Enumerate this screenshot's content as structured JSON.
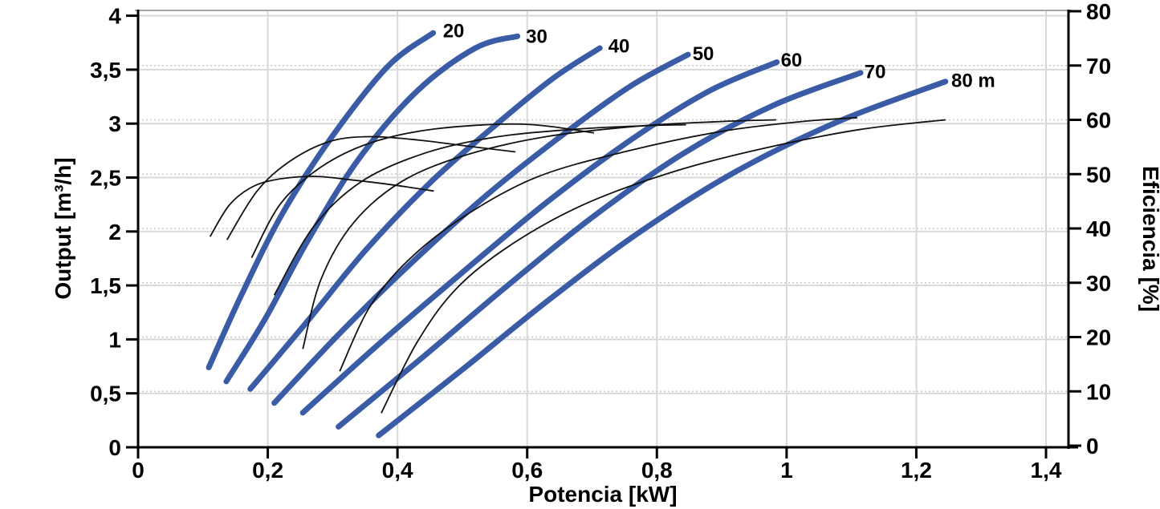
{
  "page": {
    "background": "#ffffff"
  },
  "style": {
    "head_curve_color": "#3A5BA6",
    "efficiency_curve_color": "#121212",
    "grid_color": "#d9d9d9",
    "dotted_grid_color": "#c9c9c9",
    "axis_color": "#000000",
    "frame_top_color": "#a6a6a6",
    "text_color": "#000000",
    "tick_font_size": 28,
    "axis_title_font_size": 28,
    "curve_label_font_size": 24
  },
  "chart_data": {
    "type": "line",
    "title": "",
    "x_axis": {
      "label": "Potencia [kW]",
      "range": [
        0,
        1.4345
      ],
      "tick_values": [
        0,
        0.2,
        0.4,
        0.6,
        0.8,
        1.0,
        1.2,
        1.4
      ],
      "tick_labels": [
        "0",
        "0,2",
        "0,4",
        "0,6",
        "0,8",
        "1",
        "1,2",
        "1,4"
      ],
      "grid": "solid"
    },
    "y_axis_left": {
      "label": "Output [m³/h]",
      "range": [
        0,
        4.05
      ],
      "tick_values": [
        0,
        0.5,
        1,
        1.5,
        2,
        2.5,
        3,
        3.5,
        4
      ],
      "tick_labels": [
        "0",
        "0,5",
        "1",
        "1,5",
        "2",
        "2,5",
        "3",
        "3,5",
        "4"
      ],
      "grid": "solid"
    },
    "y_axis_right": {
      "label": "Eficiencia [%]",
      "range": [
        0,
        80
      ],
      "tick_values": [
        0,
        10,
        20,
        30,
        40,
        50,
        60,
        70,
        80
      ],
      "tick_labels": [
        "0",
        "10",
        "20",
        "30",
        "40",
        "50",
        "60",
        "70",
        "80"
      ],
      "grid": "dotted"
    },
    "legend_position": "none",
    "head_curves": [
      {
        "head_m": 20,
        "label": "20",
        "label_at": [
          0.47,
          3.8
        ],
        "points": [
          [
            0.109,
            0.74
          ],
          [
            0.16,
            1.42
          ],
          [
            0.222,
            2.16
          ],
          [
            0.298,
            2.87
          ],
          [
            0.385,
            3.53
          ],
          [
            0.455,
            3.84
          ]
        ]
      },
      {
        "head_m": 30,
        "label": "30",
        "label_at": [
          0.598,
          3.75
        ],
        "points": [
          [
            0.136,
            0.61
          ],
          [
            0.196,
            1.19
          ],
          [
            0.262,
            1.92
          ],
          [
            0.34,
            2.67
          ],
          [
            0.43,
            3.3
          ],
          [
            0.52,
            3.7
          ],
          [
            0.585,
            3.81
          ]
        ]
      },
      {
        "head_m": 40,
        "label": "40",
        "label_at": [
          0.725,
          3.66
        ],
        "points": [
          [
            0.173,
            0.54
          ],
          [
            0.26,
            1.16
          ],
          [
            0.35,
            1.82
          ],
          [
            0.45,
            2.45
          ],
          [
            0.55,
            2.98
          ],
          [
            0.64,
            3.42
          ],
          [
            0.712,
            3.7
          ]
        ]
      },
      {
        "head_m": 50,
        "label": "50",
        "label_at": [
          0.855,
          3.59
        ],
        "points": [
          [
            0.21,
            0.41
          ],
          [
            0.31,
            1.05
          ],
          [
            0.42,
            1.7
          ],
          [
            0.54,
            2.35
          ],
          [
            0.66,
            2.92
          ],
          [
            0.76,
            3.35
          ],
          [
            0.848,
            3.64
          ]
        ]
      },
      {
        "head_m": 60,
        "label": "60",
        "label_at": [
          0.991,
          3.53
        ],
        "points": [
          [
            0.254,
            0.32
          ],
          [
            0.37,
            0.95
          ],
          [
            0.5,
            1.62
          ],
          [
            0.63,
            2.27
          ],
          [
            0.76,
            2.85
          ],
          [
            0.88,
            3.3
          ],
          [
            0.985,
            3.57
          ]
        ]
      },
      {
        "head_m": 70,
        "label": "70",
        "label_at": [
          1.12,
          3.42
        ],
        "points": [
          [
            0.309,
            0.19
          ],
          [
            0.44,
            0.84
          ],
          [
            0.57,
            1.5
          ],
          [
            0.7,
            2.13
          ],
          [
            0.84,
            2.72
          ],
          [
            0.98,
            3.17
          ],
          [
            1.114,
            3.47
          ]
        ]
      },
      {
        "head_m": 80,
        "label": "80 m",
        "label_at": [
          1.254,
          3.34
        ],
        "points": [
          [
            0.371,
            0.11
          ],
          [
            0.5,
            0.72
          ],
          [
            0.63,
            1.35
          ],
          [
            0.77,
            1.98
          ],
          [
            0.92,
            2.55
          ],
          [
            1.08,
            3.02
          ],
          [
            1.245,
            3.39
          ]
        ]
      }
    ],
    "efficiency_curves": [
      {
        "head_m": 20,
        "points": [
          [
            0.111,
            38.5
          ],
          [
            0.14,
            44.2
          ],
          [
            0.171,
            47.3
          ],
          [
            0.208,
            48.9
          ],
          [
            0.27,
            49.6
          ],
          [
            0.332,
            48.9
          ],
          [
            0.394,
            48.0
          ],
          [
            0.456,
            46.9
          ]
        ]
      },
      {
        "head_m": 30,
        "points": [
          [
            0.137,
            37.9
          ],
          [
            0.183,
            46.8
          ],
          [
            0.233,
            52.3
          ],
          [
            0.295,
            56.0
          ],
          [
            0.357,
            56.9
          ],
          [
            0.431,
            56.3
          ],
          [
            0.505,
            55.2
          ],
          [
            0.582,
            54.1
          ]
        ]
      },
      {
        "head_m": 40,
        "points": [
          [
            0.175,
            34.6
          ],
          [
            0.22,
            44.6
          ],
          [
            0.282,
            51.3
          ],
          [
            0.357,
            55.7
          ],
          [
            0.456,
            58.3
          ],
          [
            0.592,
            59.2
          ],
          [
            0.703,
            57.6
          ]
        ]
      },
      {
        "head_m": 50,
        "points": [
          [
            0.21,
            27.7
          ],
          [
            0.27,
            40.2
          ],
          [
            0.344,
            48.6
          ],
          [
            0.443,
            53.9
          ],
          [
            0.555,
            56.9
          ],
          [
            0.678,
            58.3
          ],
          [
            0.777,
            58.9
          ],
          [
            0.845,
            59.1
          ]
        ]
      },
      {
        "head_m": 60,
        "points": [
          [
            0.254,
            17.8
          ],
          [
            0.282,
            30.6
          ],
          [
            0.332,
            41.0
          ],
          [
            0.406,
            48.6
          ],
          [
            0.505,
            53.5
          ],
          [
            0.629,
            56.9
          ],
          [
            0.777,
            58.9
          ],
          [
            0.901,
            59.7
          ],
          [
            0.984,
            60.0
          ]
        ]
      },
      {
        "head_m": 70,
        "points": [
          [
            0.311,
            13.7
          ],
          [
            0.357,
            25.5
          ],
          [
            0.418,
            34.3
          ],
          [
            0.505,
            42.4
          ],
          [
            0.616,
            49.5
          ],
          [
            0.753,
            54.2
          ],
          [
            0.901,
            57.9
          ],
          [
            1.025,
            59.7
          ],
          [
            1.109,
            60.4
          ]
        ]
      },
      {
        "head_m": 80,
        "points": [
          [
            0.375,
            6.0
          ],
          [
            0.431,
            19.2
          ],
          [
            0.493,
            29.2
          ],
          [
            0.579,
            37.3
          ],
          [
            0.691,
            44.6
          ],
          [
            0.827,
            50.5
          ],
          [
            0.963,
            54.7
          ],
          [
            1.112,
            58.2
          ],
          [
            1.245,
            60.0
          ]
        ]
      }
    ]
  }
}
